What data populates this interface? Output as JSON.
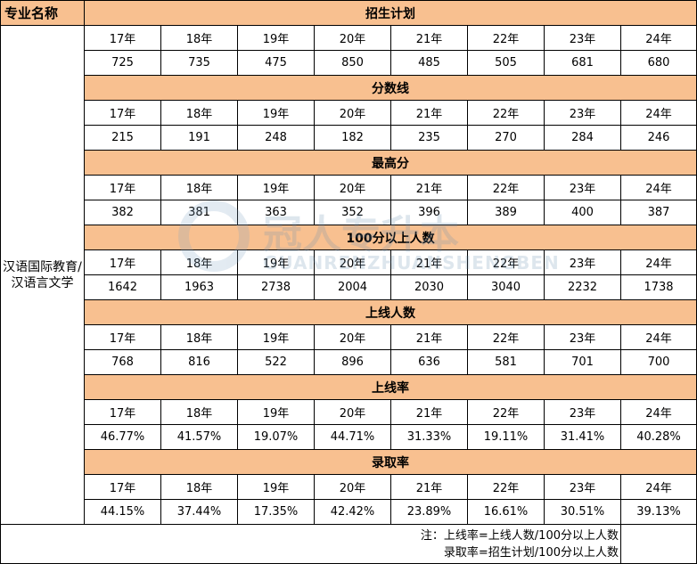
{
  "header": {
    "major_label": "专业名称"
  },
  "major": "汉语国际教育/汉语言文学",
  "years": [
    "17年",
    "18年",
    "19年",
    "20年",
    "21年",
    "22年",
    "23年",
    "24年"
  ],
  "sections": [
    {
      "title": "招生计划",
      "values": [
        "725",
        "735",
        "475",
        "850",
        "485",
        "505",
        "681",
        "680"
      ]
    },
    {
      "title": "分数线",
      "values": [
        "215",
        "191",
        "248",
        "182",
        "235",
        "270",
        "284",
        "246"
      ]
    },
    {
      "title": "最高分",
      "values": [
        "382",
        "381",
        "363",
        "352",
        "396",
        "389",
        "400",
        "387"
      ]
    },
    {
      "title": "100分以上人数",
      "values": [
        "1642",
        "1963",
        "2738",
        "2004",
        "2030",
        "3040",
        "2232",
        "1738"
      ]
    },
    {
      "title": "上线人数",
      "values": [
        "768",
        "816",
        "522",
        "896",
        "636",
        "581",
        "701",
        "700"
      ]
    },
    {
      "title": "上线率",
      "values": [
        "46.77%",
        "41.57%",
        "19.07%",
        "44.71%",
        "31.33%",
        "19.11%",
        "31.41%",
        "40.28%"
      ]
    },
    {
      "title": "录取率",
      "values": [
        "44.15%",
        "37.44%",
        "17.35%",
        "42.42%",
        "23.89%",
        "16.61%",
        "30.51%",
        "39.13%"
      ]
    }
  ],
  "note": {
    "line1": "注：上线率=上线人数/100分以上人数",
    "line2": "录取率=招生计划/100分以上人数"
  },
  "watermark": {
    "cn": "冠人专升本",
    "en": "GUANRENZHUANSHENGBEN"
  },
  "colors": {
    "header_fill": "#f8c090"
  }
}
